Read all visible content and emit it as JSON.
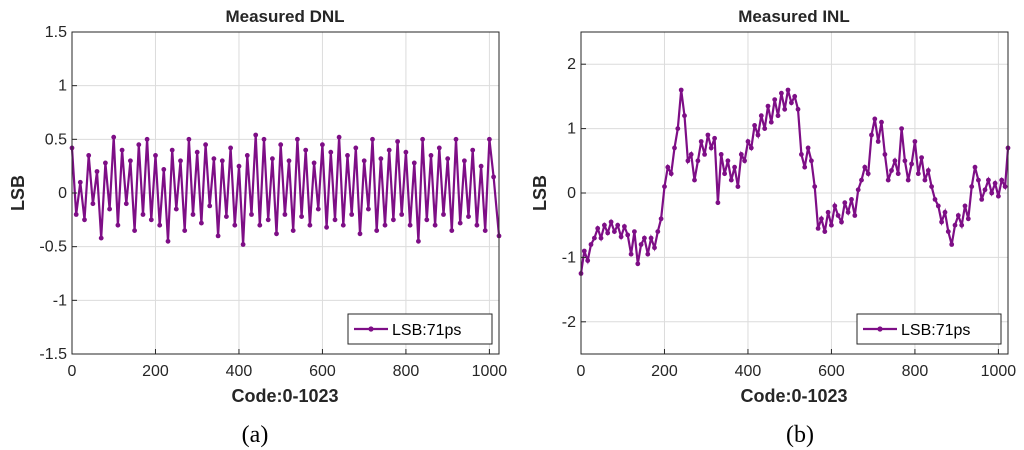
{
  "colors": {
    "series": "#7e0e86",
    "axis": "#262626",
    "grid": "#dcdcdc"
  },
  "chart_data": [
    {
      "type": "line",
      "title": "Measured DNL",
      "xlabel": "Code:0-1023",
      "ylabel": "LSB",
      "xlim": [
        0,
        1023
      ],
      "ylim": [
        -1.5,
        1.5
      ],
      "xticks": [
        0,
        200,
        400,
        600,
        800,
        1000
      ],
      "yticks": [
        -1.5,
        -1,
        -0.5,
        0,
        0.5,
        1,
        1.5
      ],
      "ytick_labels": [
        "-1.5",
        "-1",
        "-0.5",
        "0",
        "0.5",
        "1",
        "1.5"
      ],
      "grid": true,
      "legend": "bottom-right",
      "caption": "(a)",
      "series": [
        {
          "name": "LSB:71ps",
          "x": [
            0,
            10,
            20,
            30,
            40,
            50,
            60,
            70,
            80,
            90,
            100,
            110,
            120,
            130,
            140,
            150,
            160,
            170,
            180,
            190,
            200,
            210,
            220,
            230,
            240,
            250,
            260,
            270,
            280,
            290,
            300,
            310,
            320,
            330,
            340,
            350,
            360,
            370,
            380,
            390,
            400,
            410,
            420,
            430,
            440,
            450,
            460,
            470,
            480,
            490,
            500,
            510,
            520,
            530,
            540,
            550,
            560,
            570,
            580,
            590,
            600,
            610,
            620,
            630,
            640,
            650,
            660,
            670,
            680,
            690,
            700,
            710,
            720,
            730,
            740,
            750,
            760,
            770,
            780,
            790,
            800,
            810,
            820,
            830,
            840,
            850,
            860,
            870,
            880,
            890,
            900,
            910,
            920,
            930,
            940,
            950,
            960,
            970,
            980,
            990,
            1000,
            1010,
            1023
          ],
          "y": [
            0.42,
            -0.2,
            0.1,
            -0.25,
            0.35,
            -0.1,
            0.2,
            -0.42,
            0.28,
            -0.15,
            0.52,
            -0.3,
            0.4,
            -0.1,
            0.3,
            -0.35,
            0.45,
            -0.2,
            0.5,
            -0.25,
            0.35,
            -0.3,
            0.22,
            -0.45,
            0.4,
            -0.15,
            0.3,
            -0.35,
            0.5,
            -0.2,
            0.38,
            -0.28,
            0.45,
            -0.12,
            0.32,
            -0.4,
            0.3,
            -0.22,
            0.42,
            -0.3,
            0.25,
            -0.48,
            0.35,
            -0.2,
            0.54,
            -0.3,
            0.5,
            -0.25,
            0.32,
            -0.38,
            0.45,
            -0.2,
            0.3,
            -0.35,
            0.5,
            -0.22,
            0.4,
            -0.3,
            0.28,
            -0.15,
            0.45,
            -0.32,
            0.38,
            -0.25,
            0.52,
            -0.3,
            0.35,
            -0.2,
            0.42,
            -0.38,
            0.3,
            -0.15,
            0.5,
            -0.35,
            0.32,
            -0.3,
            0.4,
            -0.25,
            0.48,
            -0.2,
            0.38,
            -0.3,
            0.28,
            -0.45,
            0.5,
            -0.25,
            0.35,
            -0.3,
            0.42,
            -0.2,
            0.32,
            -0.35,
            0.5,
            -0.28,
            0.3,
            -0.22,
            0.4,
            -0.3,
            0.25,
            -0.35,
            0.5,
            0.15,
            -0.4
          ]
        }
      ]
    },
    {
      "type": "line",
      "title": "Measured INL",
      "xlabel": "Code:0-1023",
      "ylabel": "LSB",
      "xlim": [
        0,
        1023
      ],
      "ylim": [
        -2.5,
        2.5
      ],
      "xticks": [
        0,
        200,
        400,
        600,
        800,
        1000
      ],
      "yticks": [
        -2,
        -1,
        0,
        1,
        2
      ],
      "ytick_labels": [
        "-2",
        "-1",
        "0",
        "1",
        "2"
      ],
      "grid": true,
      "legend": "bottom-right",
      "caption": "(b)",
      "series": [
        {
          "name": "LSB:71ps",
          "x": [
            0,
            8,
            16,
            24,
            32,
            40,
            48,
            56,
            64,
            72,
            80,
            88,
            96,
            104,
            112,
            120,
            128,
            136,
            144,
            152,
            160,
            168,
            176,
            184,
            192,
            200,
            208,
            216,
            224,
            232,
            240,
            248,
            256,
            264,
            272,
            280,
            288,
            296,
            304,
            312,
            320,
            328,
            336,
            344,
            352,
            360,
            368,
            376,
            384,
            392,
            400,
            408,
            416,
            424,
            432,
            440,
            448,
            456,
            464,
            472,
            480,
            488,
            496,
            504,
            512,
            520,
            528,
            536,
            544,
            552,
            560,
            568,
            576,
            584,
            592,
            600,
            608,
            616,
            624,
            632,
            640,
            648,
            656,
            664,
            672,
            680,
            688,
            696,
            704,
            712,
            720,
            728,
            736,
            744,
            752,
            760,
            768,
            776,
            784,
            792,
            800,
            808,
            816,
            824,
            832,
            840,
            848,
            856,
            864,
            872,
            880,
            888,
            896,
            904,
            912,
            920,
            928,
            936,
            944,
            952,
            960,
            968,
            976,
            984,
            992,
            1000,
            1008,
            1016,
            1023
          ],
          "y": [
            -1.25,
            -0.9,
            -1.05,
            -0.8,
            -0.7,
            -0.55,
            -0.7,
            -0.5,
            -0.62,
            -0.45,
            -0.6,
            -0.5,
            -0.68,
            -0.52,
            -0.65,
            -0.95,
            -0.6,
            -1.1,
            -0.8,
            -0.7,
            -0.95,
            -0.7,
            -0.85,
            -0.6,
            -0.4,
            0.1,
            0.4,
            0.3,
            0.7,
            1.0,
            1.6,
            1.2,
            0.5,
            0.6,
            0.2,
            0.5,
            0.8,
            0.6,
            0.9,
            0.7,
            0.85,
            -0.15,
            0.6,
            0.3,
            0.5,
            0.2,
            0.4,
            0.1,
            0.6,
            0.5,
            0.8,
            0.7,
            1.05,
            0.9,
            1.2,
            1.0,
            1.35,
            1.1,
            1.45,
            1.2,
            1.55,
            1.3,
            1.6,
            1.4,
            1.5,
            1.3,
            0.6,
            0.4,
            0.7,
            0.5,
            0.1,
            -0.55,
            -0.4,
            -0.6,
            -0.3,
            -0.5,
            -0.2,
            -0.35,
            -0.45,
            -0.15,
            -0.3,
            -0.1,
            -0.35,
            0.05,
            0.2,
            0.4,
            0.3,
            0.9,
            1.15,
            0.8,
            1.1,
            0.6,
            0.2,
            0.35,
            0.5,
            0.3,
            1.0,
            0.5,
            0.2,
            0.45,
            0.8,
            0.3,
            0.55,
            0.2,
            0.35,
            0.1,
            -0.1,
            -0.2,
            -0.45,
            -0.3,
            -0.6,
            -0.8,
            -0.5,
            -0.35,
            -0.5,
            -0.2,
            -0.4,
            0.1,
            0.4,
            0.2,
            -0.1,
            0.05,
            0.2,
            0.0,
            0.15,
            -0.05,
            0.2,
            0.1,
            0.7
          ]
        }
      ]
    }
  ]
}
